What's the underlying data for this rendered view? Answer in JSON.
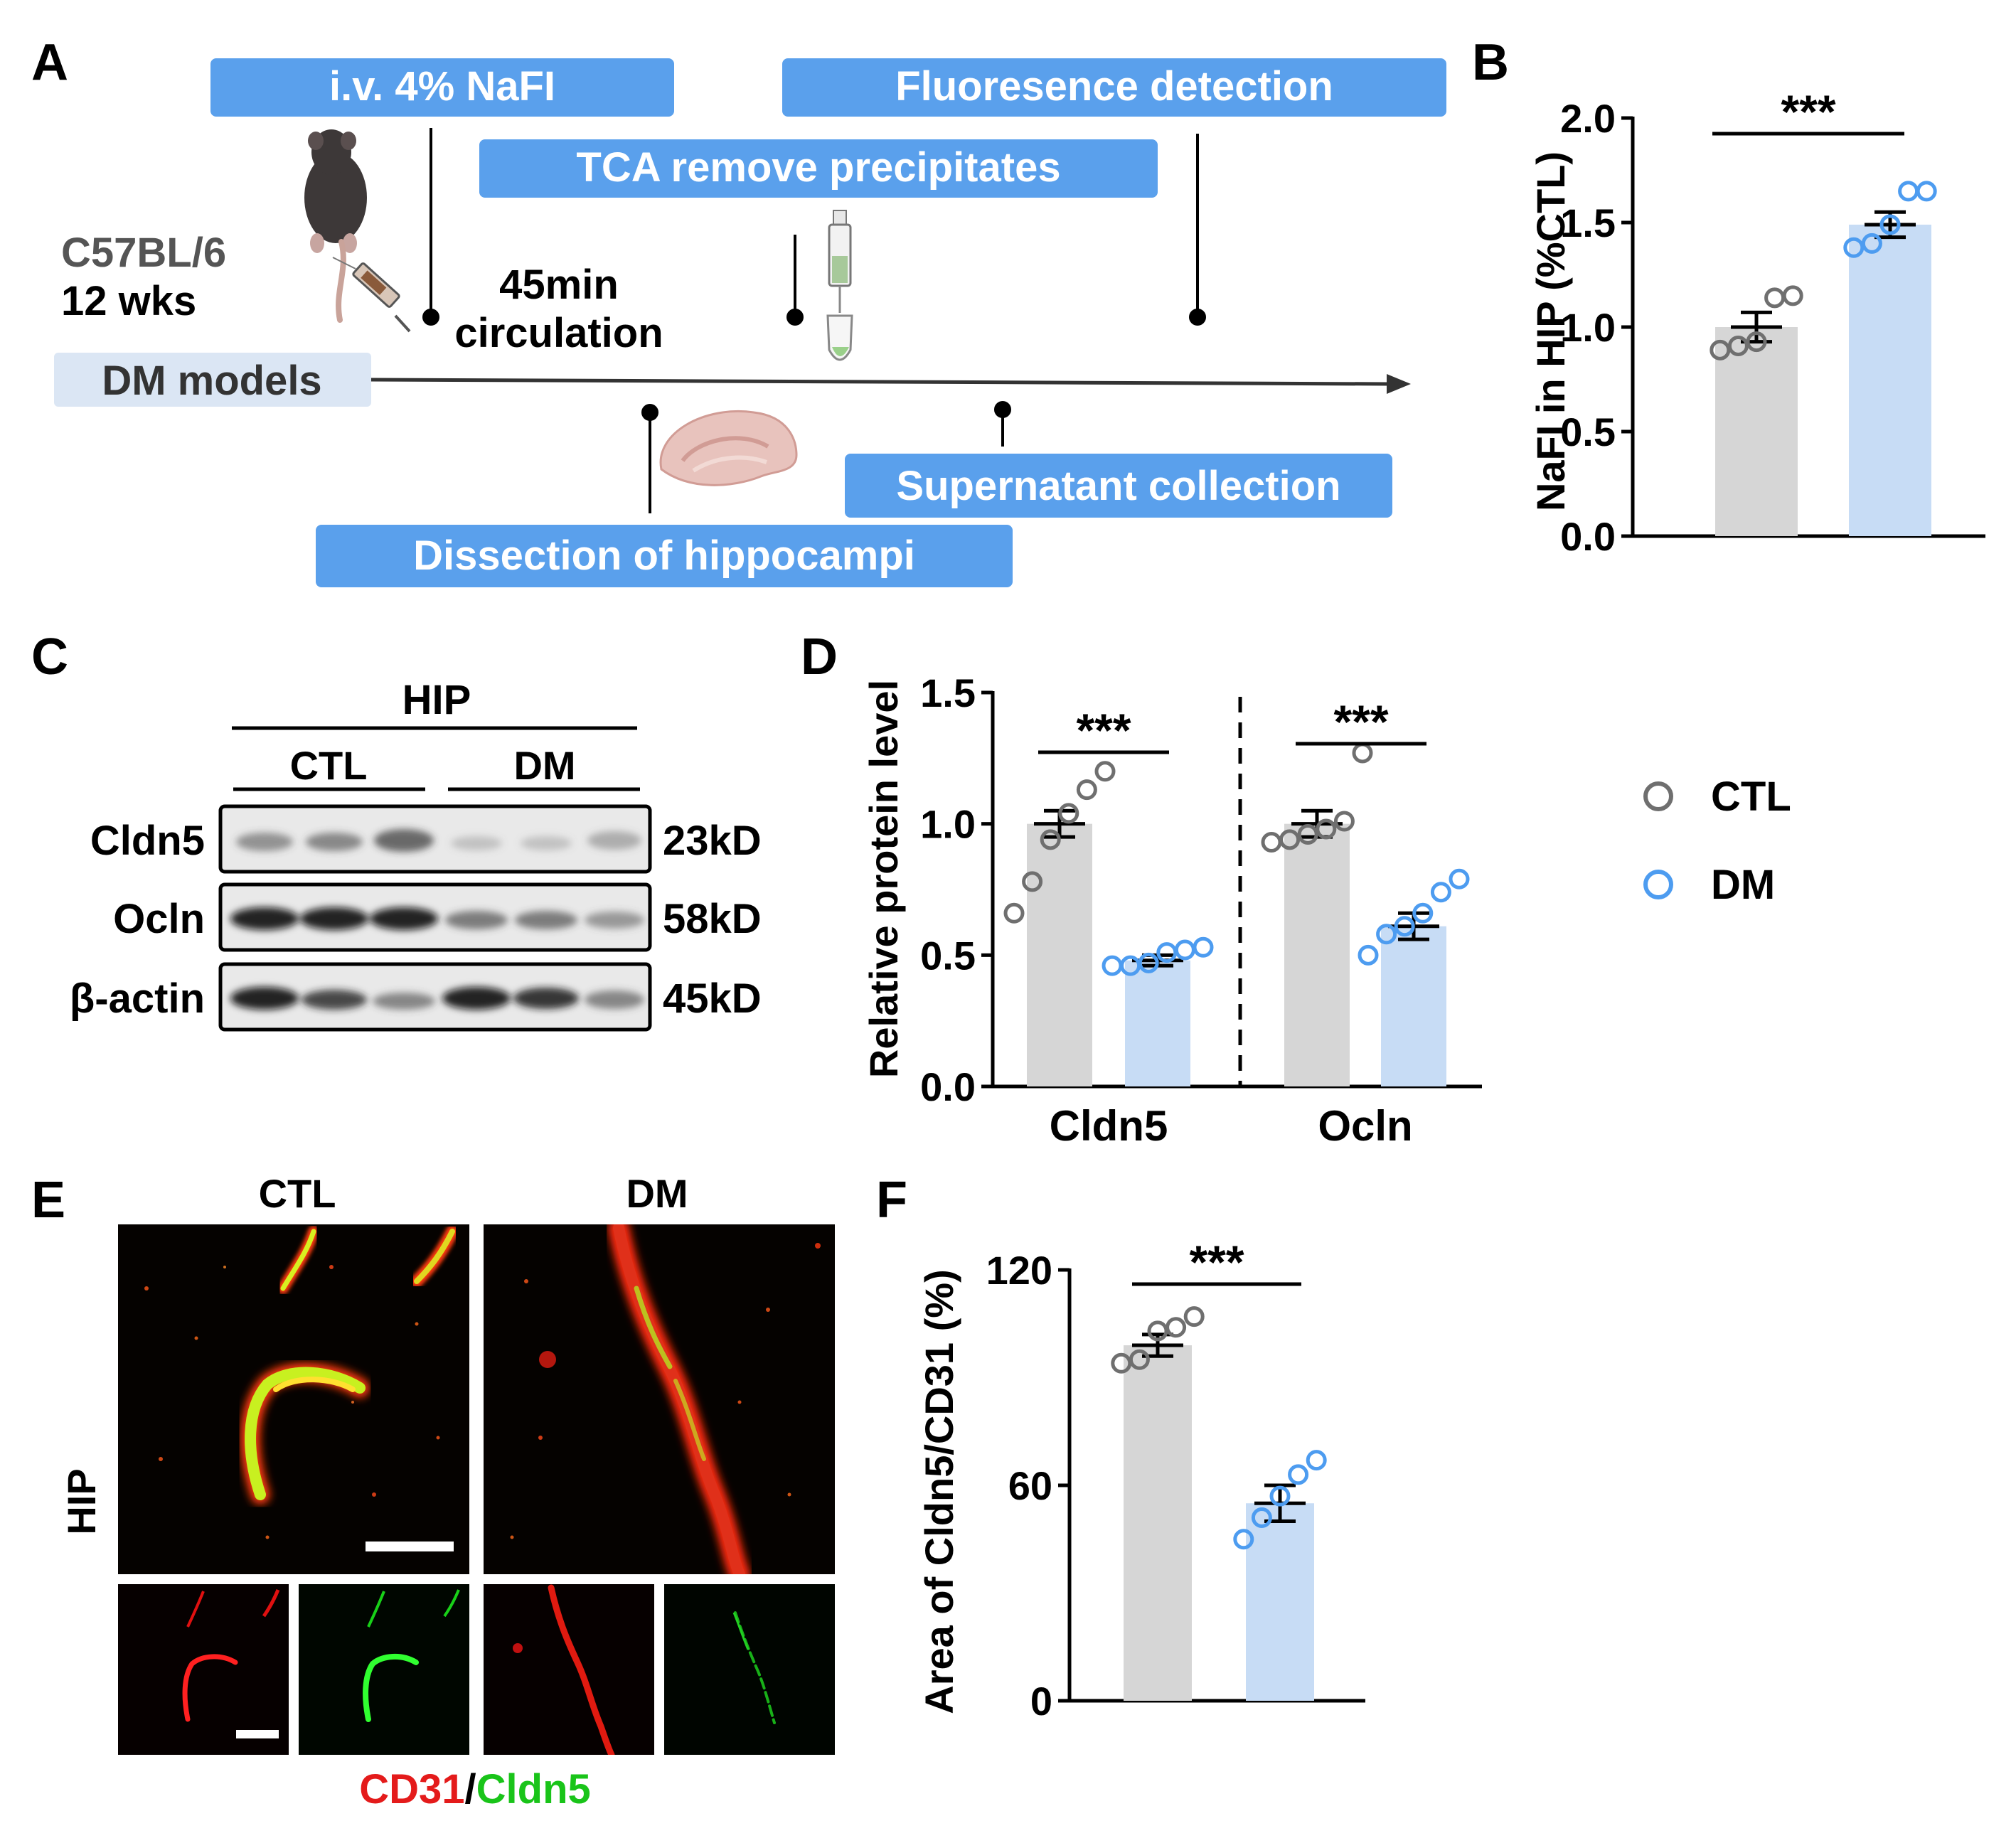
{
  "colors": {
    "ctl_bar": "#d6d6d6",
    "dm_bar": "#c7dcf5",
    "ctl_dot": "#6f6f6f",
    "dm_dot": "#4d9cf0",
    "box_blue": "#5aa0ec",
    "box_light": "#dbe6f4",
    "red_channel": "#e41b1b",
    "green_channel": "#19c419"
  },
  "panels": {
    "a": {
      "label": "A",
      "steps": {
        "injection": "i.v. 4% NaFI",
        "detection": "Fluoresence detection",
        "tca": "TCA remove precipitates",
        "supernatant": "Supernatant collection",
        "dissection": "Dissection of hippocampi"
      },
      "strain": "C57BL/6",
      "age": "12 wks",
      "circulation_time": "45min",
      "circulation_word": "circulation",
      "model_box": "DM models",
      "icons": [
        "mouse-icon",
        "syringe-icon",
        "pipette-tube-icon",
        "hippocampus-icon"
      ]
    },
    "b": {
      "label": "B"
    },
    "c": {
      "label": "C",
      "region": "HIP",
      "groups": [
        "CTL",
        "DM"
      ],
      "rows": [
        {
          "protein": "Cldn5",
          "size": "23kD"
        },
        {
          "protein": "Ocln",
          "size": "58kD"
        },
        {
          "protein": "β-actin",
          "size": "45kD"
        }
      ]
    },
    "d": {
      "label": "D"
    },
    "e": {
      "label": "E",
      "groups": [
        "CTL",
        "DM"
      ],
      "region": "HIP",
      "caption_red": "CD31",
      "caption_sep": "/",
      "caption_green": "Cldn5"
    },
    "f": {
      "label": "F"
    }
  },
  "legend": {
    "items": [
      "CTL",
      "DM"
    ]
  },
  "chart_data": [
    {
      "panel": "B",
      "type": "bar",
      "categories": [
        "CTL",
        "DM"
      ],
      "values": [
        1.0,
        1.49
      ],
      "sem": [
        0.07,
        0.06
      ],
      "points": [
        [
          0.89,
          0.91,
          0.93,
          1.14,
          1.15
        ],
        [
          1.38,
          1.4,
          1.49,
          1.65,
          1.65
        ]
      ],
      "significance": "***",
      "ylabel": "NaFI in HIP (%CTL)",
      "ylim": [
        0,
        2.0
      ],
      "yticks": [
        "0.0",
        "0.5",
        "1.0",
        "1.5",
        "2.0"
      ]
    },
    {
      "panel": "D",
      "type": "bar",
      "categories": [
        "Cldn5",
        "Ocln"
      ],
      "series": [
        {
          "name": "CTL",
          "values": [
            1.0,
            1.0
          ],
          "sem": [
            0.05,
            0.05
          ],
          "points": [
            [
              0.66,
              0.78,
              0.94,
              1.04,
              1.13,
              1.2
            ],
            [
              0.93,
              0.94,
              0.96,
              0.98,
              1.01,
              1.27
            ]
          ]
        },
        {
          "name": "DM",
          "values": [
            0.48,
            0.61
          ],
          "sem": [
            0.02,
            0.05
          ],
          "points": [
            [
              0.46,
              0.46,
              0.47,
              0.51,
              0.52,
              0.53
            ],
            [
              0.5,
              0.58,
              0.61,
              0.66,
              0.74,
              0.79
            ]
          ]
        }
      ],
      "significance": [
        "***",
        "***"
      ],
      "ylabel": "Relative protein level",
      "ylim": [
        0,
        1.5
      ],
      "yticks": [
        "0.0",
        "0.5",
        "1.0",
        "1.5"
      ]
    },
    {
      "panel": "F",
      "type": "bar",
      "categories": [
        "CTL",
        "DM"
      ],
      "values": [
        99,
        55
      ],
      "sem": [
        3,
        5
      ],
      "points": [
        [
          94,
          95,
          103,
          104,
          107
        ],
        [
          45,
          51,
          57,
          63,
          67
        ]
      ],
      "significance": "***",
      "ylabel": "Area of Cldn5/CD31 (%)",
      "ylim": [
        0,
        120
      ],
      "yticks": [
        "0",
        "60",
        "120"
      ]
    }
  ]
}
